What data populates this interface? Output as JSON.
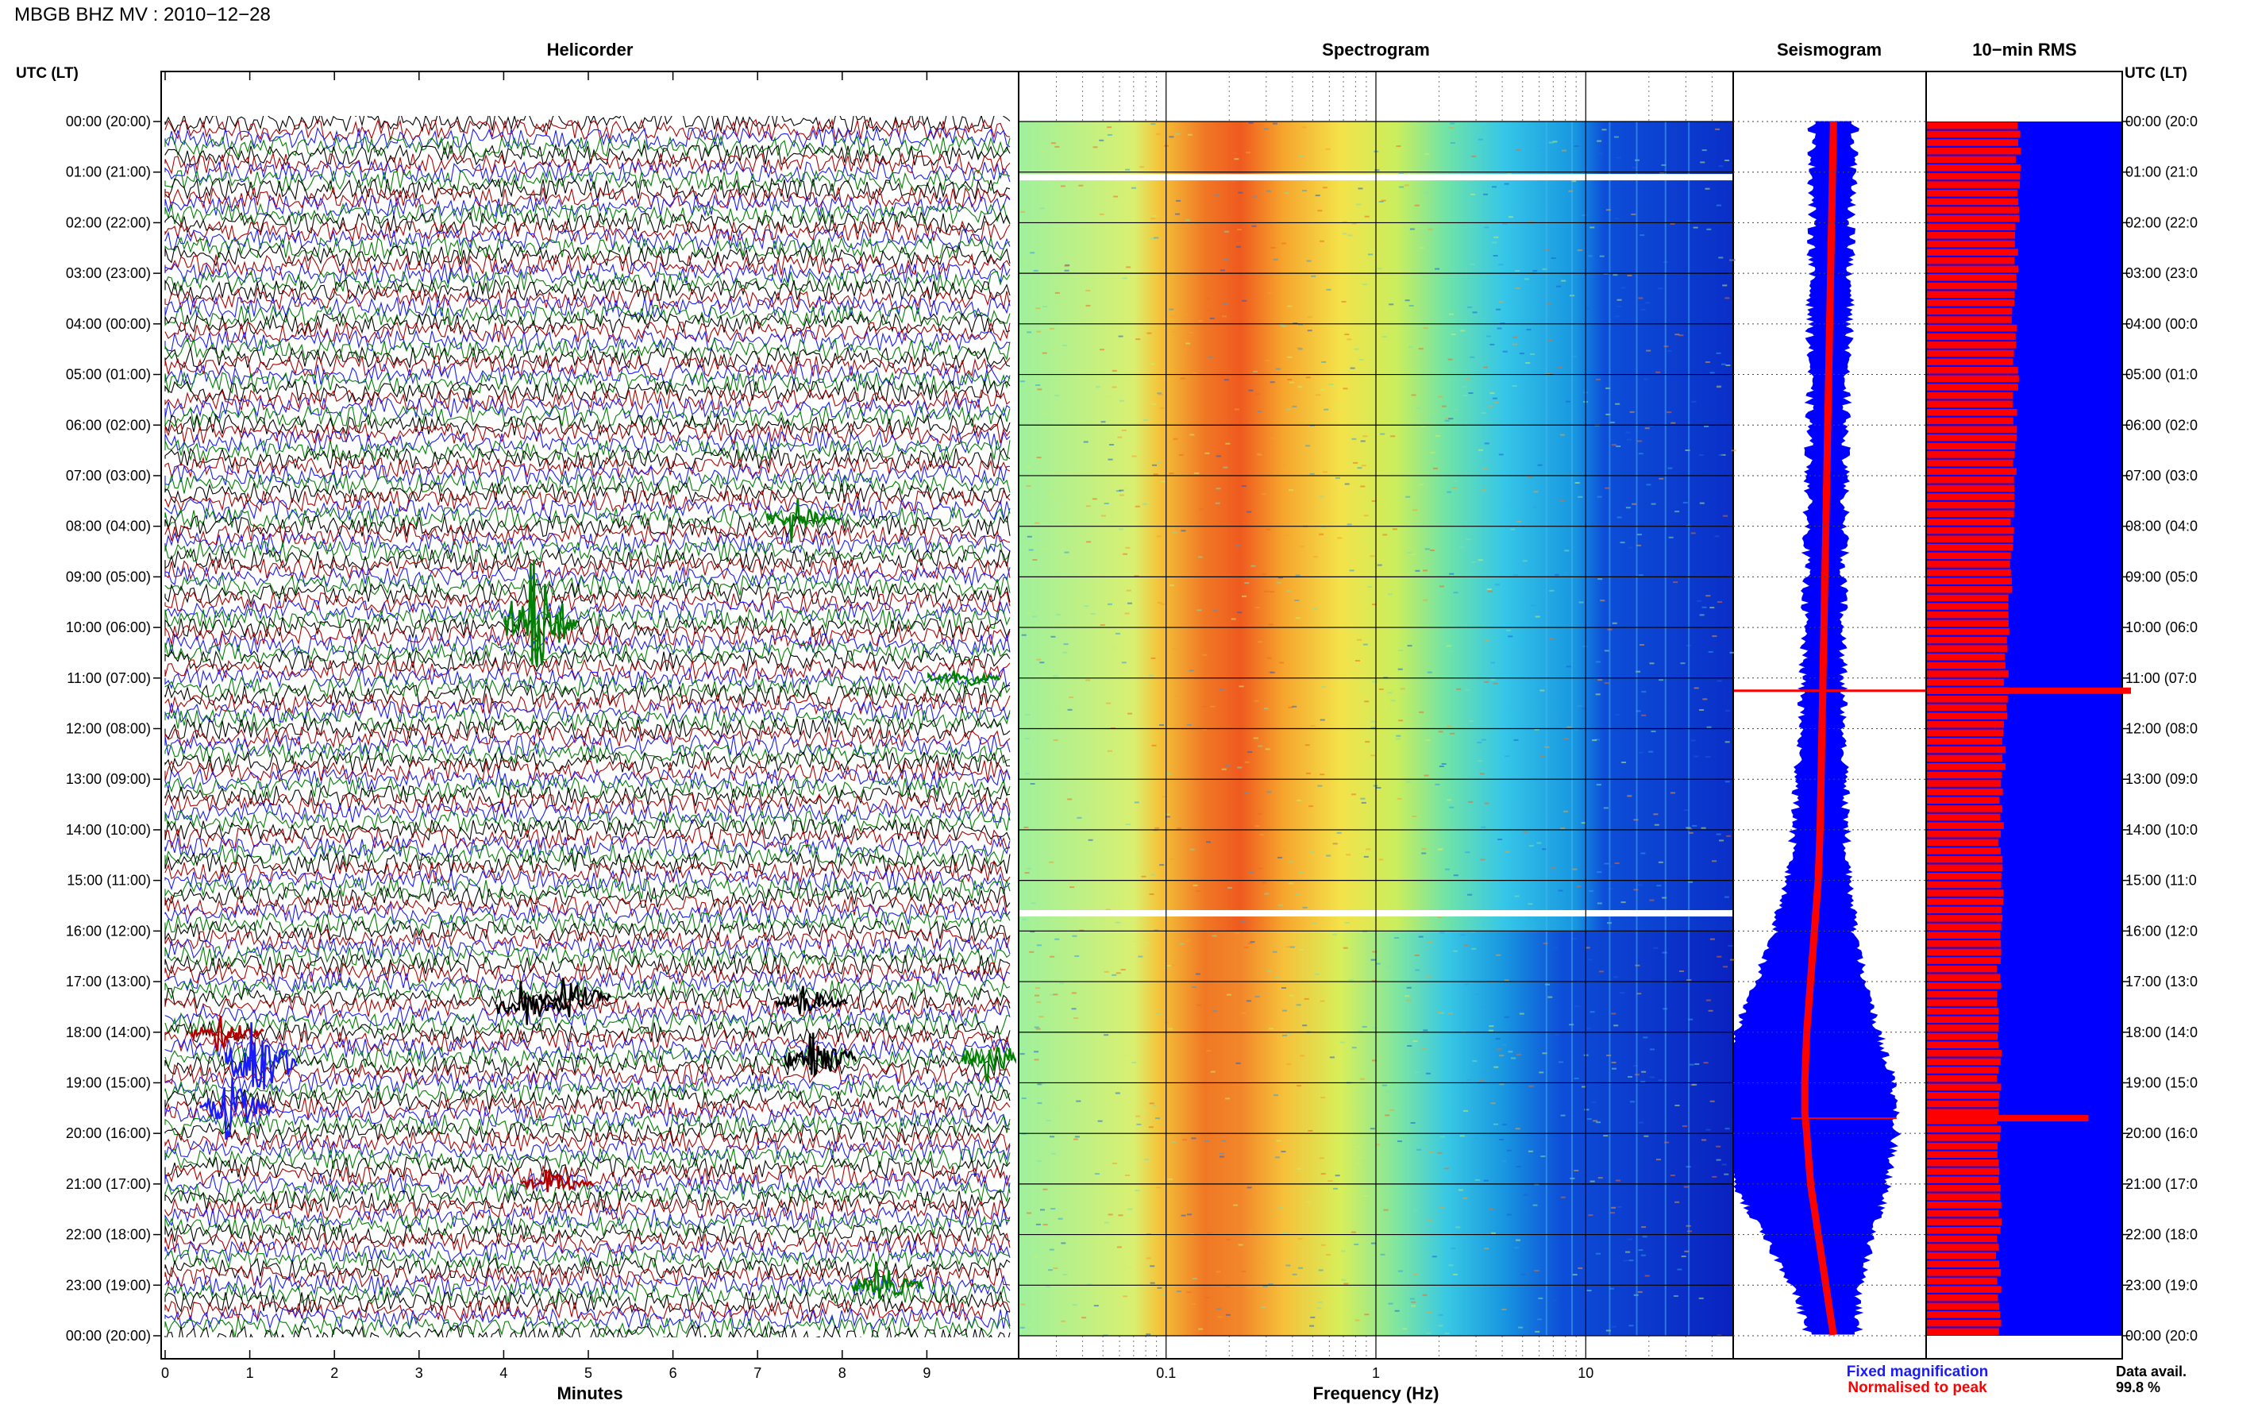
{
  "header": {
    "title": "MBGB BHZ MV : 2010−12−28"
  },
  "left_axis": {
    "title": "UTC (LT)",
    "labels": [
      "00:00 (20:00)",
      "01:00 (21:00)",
      "02:00 (22:00)",
      "03:00 (23:00)",
      "04:00 (00:00)",
      "05:00 (01:00)",
      "06:00 (02:00)",
      "07:00 (03:00)",
      "08:00 (04:00)",
      "09:00 (05:00)",
      "10:00 (06:00)",
      "11:00 (07:00)",
      "12:00 (08:00)",
      "13:00 (09:00)",
      "14:00 (10:00)",
      "15:00 (11:00)",
      "16:00 (12:00)",
      "17:00 (13:00)",
      "18:00 (14:00)",
      "19:00 (15:00)",
      "20:00 (16:00)",
      "21:00 (17:00)",
      "22:00 (18:00)",
      "23:00 (19:00)",
      "00:00 (20:00)"
    ]
  },
  "right_axis": {
    "title": "UTC (LT)",
    "labels": [
      "00:00 (20:0",
      "01:00 (21:0",
      "02:00 (22:0",
      "03:00 (23:0",
      "04:00 (00:0",
      "05:00 (01:0",
      "06:00 (02:0",
      "07:00 (03:0",
      "08:00 (04:0",
      "09:00 (05:0",
      "10:00 (06:0",
      "11:00 (07:0",
      "12:00 (08:0",
      "13:00 (09:0",
      "14:00 (10:0",
      "15:00 (11:0",
      "16:00 (12:0",
      "17:00 (13:0",
      "18:00 (14:0",
      "19:00 (15:0",
      "20:00 (16:0",
      "21:00 (17:0",
      "22:00 (18:0",
      "23:00 (19:0",
      "00:00 (20:0"
    ]
  },
  "footer": {
    "legend_fixed": "Fixed magnification",
    "legend_normalised": "Normalised to peak",
    "data_avail_label": "Data avail.",
    "data_avail_value": "99.8 %"
  },
  "colors": {
    "trace_cycle": [
      "#000000",
      "#b00000",
      "#1a1aff",
      "#008000"
    ],
    "fixed": "#0000ff",
    "normalised": "#ff0000",
    "rms_bg": "#0000ff",
    "rms_bar": "#ff0000"
  },
  "chart_data": [
    {
      "type": "line",
      "panel": "helicorder",
      "title": "Helicorder",
      "xlabel": "Minutes",
      "ylabel": "UTC (LT)",
      "xlim": [
        0,
        10
      ],
      "xticks": [
        "0",
        "1",
        "2",
        "3",
        "4",
        "5",
        "6",
        "7",
        "8",
        "9"
      ],
      "lines_per_hour": 6,
      "hours": 24,
      "events": [
        {
          "hour": 9.9,
          "minute": 4.3,
          "amplitude": 8.0,
          "color": "green"
        },
        {
          "hour": 7.85,
          "minute": 7.4,
          "amplitude": 2.5,
          "color": "green"
        },
        {
          "hour": 11.0,
          "minute": 9.3,
          "amplitude": 1.5,
          "color": "green"
        },
        {
          "hour": 17.3,
          "minute": 4.7,
          "amplitude": 2.5,
          "color": "black"
        },
        {
          "hour": 17.5,
          "minute": 4.2,
          "amplitude": 2.5,
          "color": "black"
        },
        {
          "hour": 17.4,
          "minute": 7.5,
          "amplitude": 2.0,
          "color": "black"
        },
        {
          "hour": 18.5,
          "minute": 7.6,
          "amplitude": 3.5,
          "color": "black"
        },
        {
          "hour": 18.5,
          "minute": 9.7,
          "amplitude": 2.5,
          "color": "green"
        },
        {
          "hour": 18.0,
          "minute": 0.6,
          "amplitude": 2.0,
          "color": "darkred"
        },
        {
          "hour": 18.6,
          "minute": 1.0,
          "amplitude": 6.0,
          "color": "blue"
        },
        {
          "hour": 19.5,
          "minute": 0.7,
          "amplitude": 4.0,
          "color": "blue"
        },
        {
          "hour": 21.0,
          "minute": 4.5,
          "amplitude": 1.5,
          "color": "darkred"
        },
        {
          "hour": 23.0,
          "minute": 8.4,
          "amplitude": 2.5,
          "color": "green"
        }
      ]
    },
    {
      "type": "heatmap",
      "panel": "spectrogram",
      "title": "Spectrogram",
      "xlabel": "Frequency (Hz)",
      "xscale": "log",
      "xlim": [
        0.02,
        50
      ],
      "xticks": [
        "0.1",
        "1",
        "10"
      ],
      "peak_frequency_hz": 0.3,
      "data_gaps_utc_hours": [
        1.1,
        15.65
      ]
    },
    {
      "type": "line",
      "panel": "seismogram",
      "title": "Seismogram",
      "series": [
        {
          "name": "Fixed magnification",
          "hours": [
            0,
            2,
            4,
            6,
            8,
            10,
            12,
            14,
            15,
            16,
            17,
            18,
            19,
            19.6,
            20,
            21,
            22,
            23,
            24
          ],
          "halfwidth": [
            0.22,
            0.2,
            0.2,
            0.19,
            0.19,
            0.2,
            0.22,
            0.27,
            0.32,
            0.42,
            0.56,
            0.75,
            0.92,
            0.95,
            0.93,
            0.8,
            0.58,
            0.34,
            0.25
          ]
        },
        {
          "name": "Normalised to peak",
          "hours": [
            0,
            2,
            4,
            6,
            8,
            10,
            12,
            14,
            15,
            16,
            17,
            18,
            19,
            19.6,
            20,
            21,
            22,
            23,
            24
          ],
          "center": [
            0.52,
            0.51,
            0.5,
            0.49,
            0.48,
            0.47,
            0.46,
            0.45,
            0.44,
            0.42,
            0.4,
            0.38,
            0.37,
            0.37,
            0.38,
            0.4,
            0.44,
            0.48,
            0.52
          ]
        }
      ],
      "spikes": [
        {
          "hour": 11.25,
          "extent": "full"
        },
        {
          "hour": 19.7,
          "extent": "normalised"
        }
      ]
    },
    {
      "type": "bar",
      "panel": "rms",
      "title": "10−min RMS",
      "orientation": "horizontal",
      "bar_interval_minutes": 10,
      "hours": [
        0,
        1,
        2,
        3,
        4,
        5,
        6,
        7,
        8,
        9,
        10,
        11,
        12,
        13,
        14,
        15,
        16,
        17,
        18,
        19,
        20,
        21,
        22,
        23,
        24
      ],
      "level": [
        0.47,
        0.47,
        0.47,
        0.46,
        0.45,
        0.46,
        0.45,
        0.45,
        0.44,
        0.43,
        0.42,
        0.41,
        0.4,
        0.39,
        0.38,
        0.38,
        0.38,
        0.37,
        0.37,
        0.37,
        0.37,
        0.37,
        0.37,
        0.37,
        0.37
      ],
      "spikes": [
        {
          "hour": 11.25,
          "level": 1.0
        },
        {
          "hour": 19.7,
          "level": 0.83
        }
      ]
    }
  ]
}
